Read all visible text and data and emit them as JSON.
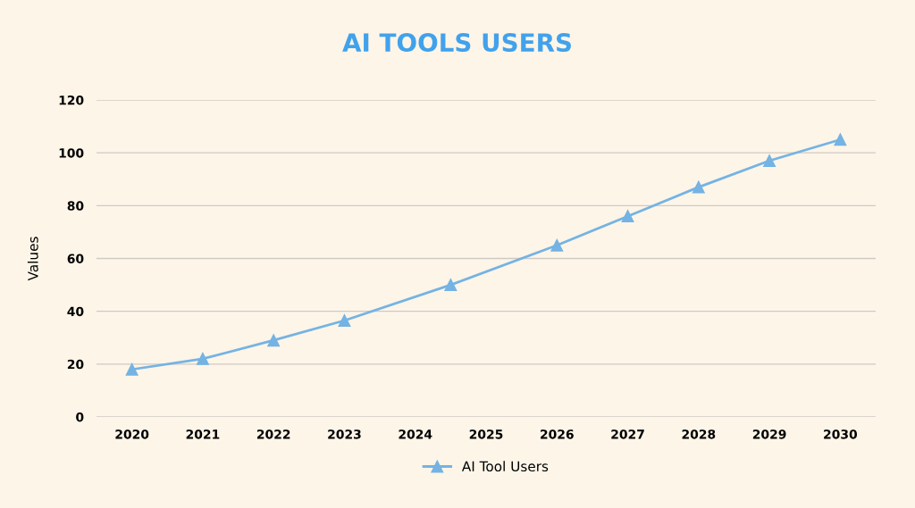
{
  "chart_data": {
    "type": "line",
    "title": "AI TOOLS USERS",
    "ylabel": "Values",
    "x": [
      2020,
      2021,
      2022,
      2023,
      2024.5,
      2026,
      2027,
      2028,
      2029,
      2030
    ],
    "series": [
      {
        "name": "AI Tool Users",
        "color": "#74b3e3",
        "values": [
          18,
          22,
          29,
          36.5,
          50,
          65,
          76,
          87,
          97,
          105
        ]
      }
    ],
    "xlim": [
      2019.5,
      2030.5
    ],
    "xticks": [
      2020,
      2021,
      2022,
      2023,
      2024,
      2025,
      2026,
      2027,
      2028,
      2029,
      2030
    ],
    "ylim": [
      0,
      120
    ],
    "yticks": [
      0,
      20,
      40,
      60,
      80,
      100,
      120
    ],
    "grid": "y",
    "legend": "bottom",
    "marker": "triangle",
    "line_style": "solid"
  }
}
